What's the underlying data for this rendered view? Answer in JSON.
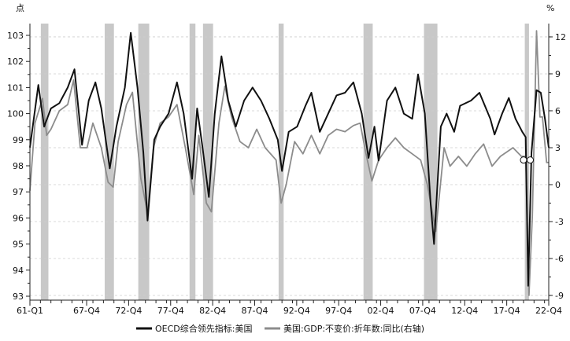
{
  "chart_data": {
    "type": "line",
    "title": "",
    "left_axis": {
      "unit_label": "点",
      "ylim": [
        92.8,
        103.6
      ],
      "ticks": [
        93,
        94,
        95,
        96,
        97,
        98,
        99,
        100,
        101,
        102,
        103
      ]
    },
    "right_axis": {
      "unit_label": "%",
      "ylim": [
        -9.3,
        13.5
      ],
      "ticks": [
        -9,
        -6,
        -3,
        0,
        3,
        6,
        9,
        12
      ]
    },
    "x_axis": {
      "xlim": [
        1961.0,
        2022.75
      ],
      "tick_labels": [
        "61-Q1",
        "67-Q4",
        "72-Q4",
        "77-Q4",
        "82-Q4",
        "87-Q4",
        "92-Q4",
        "97-Q4",
        "02-Q4",
        "07-Q4",
        "12-Q4",
        "17-Q4",
        "22-Q4"
      ],
      "tick_values": [
        1961.0,
        1967.75,
        1972.75,
        1977.75,
        1982.75,
        1987.75,
        1992.75,
        1997.75,
        2002.75,
        2007.75,
        2012.75,
        2017.75,
        2022.75
      ]
    },
    "grid": "dashed horizontal at right-axis ticks",
    "legend_position": "bottom",
    "recession_shading": [
      [
        1962.3,
        1963.2
      ],
      [
        1969.9,
        1971.0
      ],
      [
        1973.9,
        1975.2
      ],
      [
        1980.0,
        1980.7
      ],
      [
        1981.6,
        1982.8
      ],
      [
        1990.6,
        1991.2
      ],
      [
        2000.7,
        2001.8
      ],
      [
        2007.9,
        2009.5
      ],
      [
        2019.9,
        2020.4
      ]
    ],
    "series": [
      {
        "name": "OECD综合领先指标:美国",
        "axis": "left",
        "color": "#111111",
        "x": [
          1961.0,
          1962.0,
          1962.7,
          1963.5,
          1964.5,
          1965.5,
          1966.3,
          1967.2,
          1968.0,
          1968.8,
          1969.5,
          1970.5,
          1971.3,
          1972.3,
          1973.0,
          1973.8,
          1974.5,
          1975.0,
          1975.8,
          1976.5,
          1977.5,
          1978.5,
          1979.3,
          1980.3,
          1980.9,
          1981.5,
          1982.3,
          1983.0,
          1983.8,
          1984.6,
          1985.5,
          1986.5,
          1987.5,
          1988.5,
          1989.5,
          1990.5,
          1991.0,
          1991.8,
          1992.8,
          1993.8,
          1994.5,
          1995.5,
          1996.5,
          1997.5,
          1998.5,
          1999.5,
          2000.5,
          2001.3,
          2002.0,
          2002.5,
          2003.5,
          2004.5,
          2005.5,
          2006.5,
          2007.2,
          2008.0,
          2008.7,
          2009.1,
          2009.9,
          2010.6,
          2011.5,
          2012.2,
          2013.5,
          2014.5,
          2015.8,
          2016.3,
          2017.2,
          2018.0,
          2018.8,
          2019.6,
          2020.0,
          2020.3,
          2020.7,
          2021.3,
          2021.8,
          2022.3,
          2022.75
        ],
        "y": [
          98.7,
          101.1,
          99.5,
          100.2,
          100.4,
          101.0,
          101.7,
          98.8,
          100.5,
          101.2,
          100.2,
          97.9,
          99.5,
          101.0,
          103.1,
          101.0,
          98.5,
          95.9,
          99.0,
          99.5,
          100.0,
          101.2,
          100.0,
          97.5,
          100.2,
          98.8,
          96.8,
          100.0,
          102.2,
          100.5,
          99.5,
          100.5,
          101.0,
          100.5,
          99.8,
          99.0,
          97.8,
          99.3,
          99.5,
          100.3,
          100.8,
          99.3,
          100.0,
          100.7,
          100.8,
          101.2,
          100.0,
          98.3,
          99.5,
          98.2,
          100.5,
          101.0,
          100.0,
          99.8,
          101.5,
          100.0,
          96.5,
          95.0,
          99.5,
          100.0,
          99.3,
          100.3,
          100.5,
          100.8,
          99.8,
          99.2,
          100.0,
          100.6,
          99.8,
          99.3,
          99.1,
          93.4,
          98.5,
          100.9,
          100.8,
          99.8,
          98.7
        ]
      },
      {
        "name": "美国:GDP:不变价:折年数:同比(右轴)",
        "axis": "right",
        "color": "#8c8c8c",
        "x": [
          1961.0,
          1961.6,
          1962.5,
          1963.0,
          1963.5,
          1964.5,
          1965.5,
          1966.2,
          1967.0,
          1967.8,
          1968.5,
          1969.5,
          1970.3,
          1970.9,
          1971.5,
          1972.5,
          1973.2,
          1974.2,
          1975.0,
          1975.7,
          1976.5,
          1977.5,
          1978.5,
          1979.5,
          1980.5,
          1981.1,
          1982.0,
          1982.6,
          1983.5,
          1984.2,
          1985.0,
          1986.0,
          1987.0,
          1988.0,
          1989.0,
          1990.3,
          1990.9,
          1991.5,
          1992.5,
          1993.5,
          1994.5,
          1995.5,
          1996.5,
          1997.5,
          1998.5,
          1999.5,
          2000.3,
          2001.0,
          2001.7,
          2002.5,
          2003.5,
          2004.5,
          2005.5,
          2006.5,
          2007.5,
          2008.3,
          2009.3,
          2010.3,
          2011.0,
          2012.0,
          2013.0,
          2014.0,
          2015.0,
          2016.0,
          2017.0,
          2018.5,
          2019.5,
          2020.0,
          2020.4,
          2020.8,
          2021.3,
          2021.7,
          2022.0,
          2022.5,
          2022.75
        ],
        "y": [
          -0.5,
          5,
          7,
          4,
          4.5,
          6,
          6.5,
          8.5,
          3,
          3,
          5,
          3,
          0.2,
          -0.2,
          3.5,
          6.5,
          7.5,
          0.5,
          -2.3,
          3,
          5,
          5.5,
          6.5,
          3,
          -0.8,
          4,
          -1.5,
          -2.2,
          5,
          8,
          5.5,
          3.5,
          3,
          4.5,
          3,
          2,
          -1.5,
          0,
          3.5,
          2.5,
          4,
          2.5,
          4,
          4.5,
          4.3,
          4.8,
          5,
          2.5,
          0.3,
          2,
          3,
          3.8,
          3,
          2.5,
          2,
          0,
          -3.8,
          3,
          1.5,
          2.3,
          1.5,
          2.5,
          3.3,
          1.5,
          2.3,
          3,
          2.3,
          2.3,
          -9,
          -2.5,
          12.5,
          5.5,
          5.5,
          1.8,
          1.8
        ]
      }
    ]
  }
}
